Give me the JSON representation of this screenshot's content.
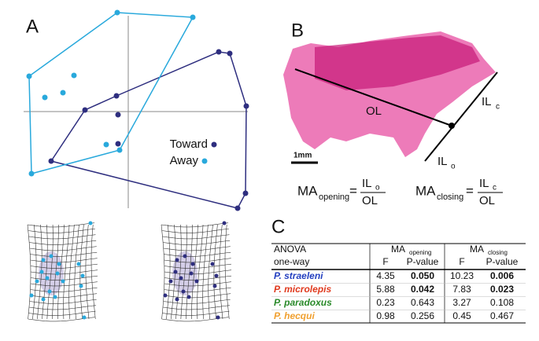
{
  "panel_labels": {
    "a": "A",
    "b": "B",
    "c": "C"
  },
  "chart_data": {
    "type": "scatter",
    "xlim": [
      -1.35,
      1.6
    ],
    "ylim": [
      -1.3,
      1.3
    ],
    "series": [
      {
        "name": "Toward",
        "color": "#2e2e7f",
        "x": [
          1.15,
          1.29,
          1.5,
          1.49,
          1.39,
          -0.15,
          -0.13,
          -0.13,
          -0.55,
          -0.98
        ],
        "y": [
          0.76,
          0.74,
          0.07,
          -1.04,
          -1.23,
          0.2,
          -0.04,
          -0.41,
          0.02,
          -0.63
        ]
      },
      {
        "name": "Away",
        "color": "#29a9dc",
        "x": [
          -0.14,
          0.82,
          -1.26,
          -0.69,
          -1.06,
          -0.83,
          -0.28,
          -0.11,
          -1.23
        ],
        "y": [
          1.26,
          1.2,
          0.45,
          0.46,
          0.18,
          0.24,
          -0.42,
          -0.49,
          -0.79
        ]
      }
    ]
  },
  "photo": {
    "ol": "OL",
    "il_c": [
      "IL",
      "c"
    ],
    "il_o": [
      "IL",
      "o"
    ],
    "scale_bar": "1mm"
  },
  "formulas": [
    {
      "lhs": [
        "MA",
        "opening"
      ],
      "equals": "=",
      "numerator": [
        "IL",
        "o"
      ],
      "denominator": "OL"
    },
    {
      "lhs": [
        "MA",
        "closing"
      ],
      "equals": "=",
      "numerator": [
        "IL",
        "c"
      ],
      "denominator": "OL"
    }
  ],
  "table": {
    "header": [
      [
        "ANOVA",
        [
          "MA",
          "opening"
        ],
        [
          "MA",
          "closing"
        ]
      ],
      [
        "one-way",
        "F",
        "P-value",
        "F",
        "P-value"
      ]
    ],
    "rows": [
      {
        "species": "P. straeleni",
        "color": "#2440c0",
        "cells": [
          "4.35",
          "0.050",
          "10.23",
          "0.006"
        ],
        "bold": [
          false,
          true,
          false,
          true
        ]
      },
      {
        "species": "P. microlepis",
        "color": "#e03a1e",
        "cells": [
          "5.88",
          "0.042",
          "7.83",
          "0.023"
        ],
        "bold": [
          false,
          true,
          false,
          true
        ]
      },
      {
        "species": "P. paradoxus",
        "color": "#2a8a2a",
        "cells": [
          "0.23",
          "0.643",
          "3.27",
          "0.108"
        ],
        "bold": [
          false,
          false,
          false,
          false
        ]
      },
      {
        "species": "P. hecqui",
        "color": "#f0a030",
        "cells": [
          "0.98",
          "0.256",
          "0.45",
          "0.467"
        ],
        "bold": [
          false,
          false,
          false,
          false
        ]
      }
    ]
  }
}
